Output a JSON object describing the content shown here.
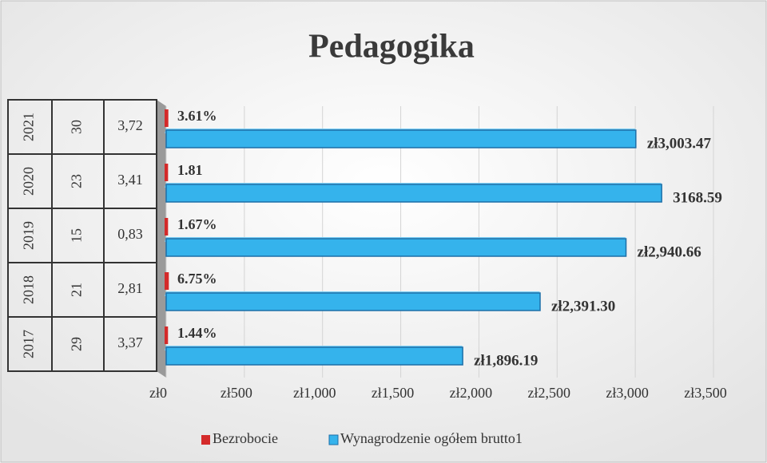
{
  "chart_data": {
    "type": "bar",
    "orientation": "horizontal",
    "title": "Pedagogika",
    "categories": [
      [
        "2017",
        "29",
        "3,37"
      ],
      [
        "2018",
        "21",
        "2,81"
      ],
      [
        "2019",
        "15",
        "0,83"
      ],
      [
        "2020",
        "23",
        "3,41"
      ],
      [
        "2021",
        "30",
        "3,72"
      ]
    ],
    "series": [
      {
        "name": "Bezrobocie",
        "color": "#d42a2a",
        "values": [
          1.44,
          6.75,
          1.67,
          1.81,
          3.61
        ],
        "value_labels": [
          "1.44%",
          "6.75%",
          "1.67%",
          "1.81",
          "3.61%"
        ]
      },
      {
        "name": "Wynagrodzenie ogółem brutto1",
        "color": "#35b3ec",
        "values": [
          1896.19,
          2391.3,
          2940.66,
          3168.59,
          3003.47
        ],
        "value_labels": [
          "zł1,896.19",
          "zł2,391.30",
          "zł2,940.66",
          "3168.59",
          "zł3,003.47"
        ]
      }
    ],
    "xlim": [
      0,
      3500
    ],
    "xticks": [
      {
        "value": 0,
        "label": "zł0"
      },
      {
        "value": 500,
        "label": "zł500"
      },
      {
        "value": 1000,
        "label": "zł1,000"
      },
      {
        "value": 1500,
        "label": "zł1,500"
      },
      {
        "value": 2000,
        "label": "zł2,000"
      },
      {
        "value": 2500,
        "label": "zł2,500"
      },
      {
        "value": 3000,
        "label": "zł3,000"
      },
      {
        "value": 3500,
        "label": "zł3,500"
      }
    ],
    "grid": true,
    "legend": "bottom"
  }
}
